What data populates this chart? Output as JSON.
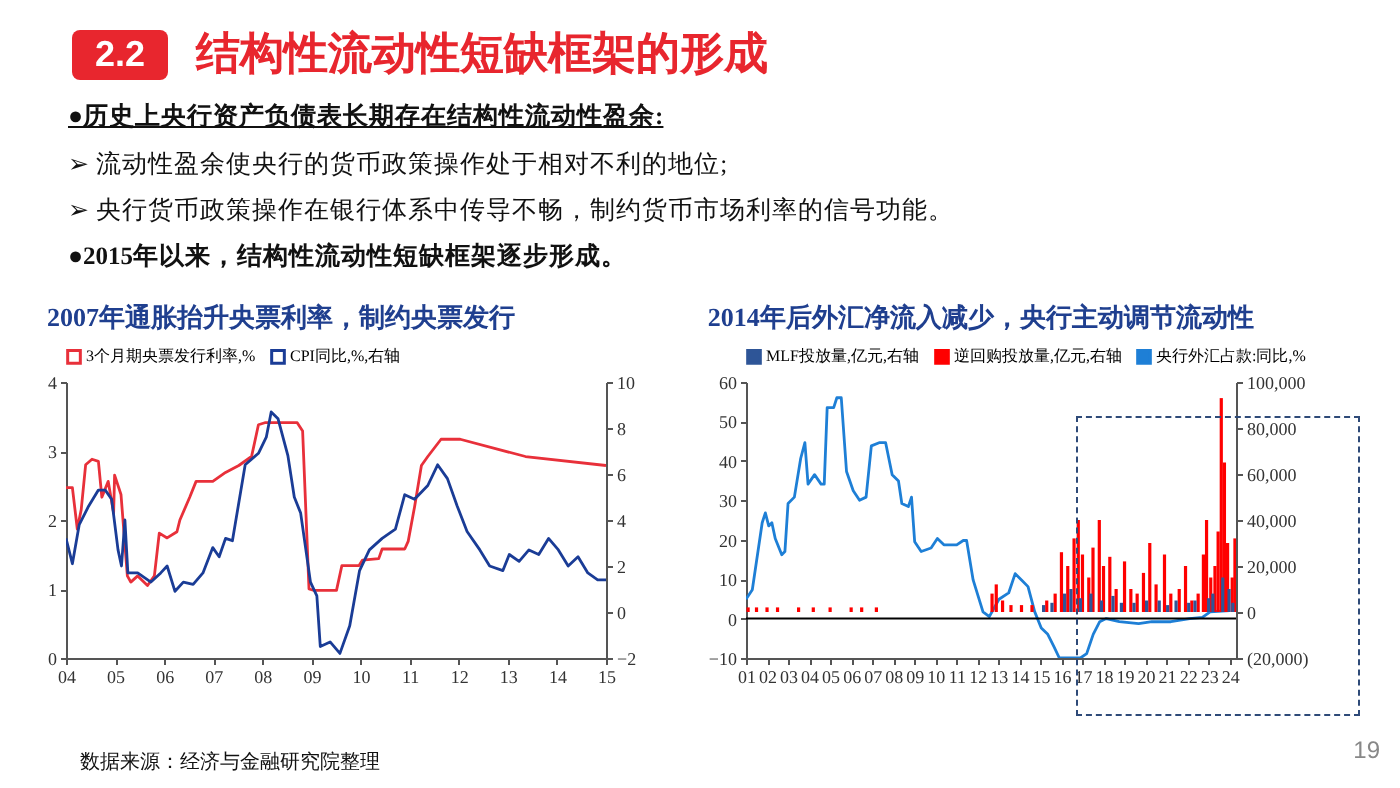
{
  "chart_data": [
    {
      "type": "other",
      "title": "结构性流动性短缺框架的形成",
      "annotations": [
        "2.2",
        "●历史上央行资产负债表长期存在结构性流动性盈余:",
        "➢ 流动性盈余使央行的货币政策操作处于相对不利的地位;",
        "➢ 央行货币政策操作在银行体系中传导不畅，制约货币市场利率的信号功能。",
        "●2015年以来，结构性流动性短缺框架逐步形成。",
        "19"
      ]
    },
    {
      "type": "line",
      "title": "2007年通胀抬升央票利率，制约央票发行",
      "xlim": [
        2004,
        2015
      ],
      "xticks": [
        {
          "value": 2004,
          "label": "04"
        },
        {
          "value": 2005,
          "label": "05"
        },
        {
          "value": 2006,
          "label": "06"
        },
        {
          "value": 2007,
          "label": "07"
        },
        {
          "value": 2008,
          "label": "08"
        },
        {
          "value": 2009,
          "label": "09"
        },
        {
          "value": 2010,
          "label": "10"
        },
        {
          "value": 2011,
          "label": "11"
        },
        {
          "value": 2012,
          "label": "12"
        },
        {
          "value": 2013,
          "label": "13"
        },
        {
          "value": 2014,
          "label": "14"
        },
        {
          "value": 2015,
          "label": "15"
        }
      ],
      "ylim": [
        0,
        4
      ],
      "yticks": [
        0,
        1,
        2,
        3,
        4
      ],
      "y2lim": [
        -2,
        10
      ],
      "y2ticks": [
        -2,
        0,
        2,
        4,
        6,
        8,
        10
      ],
      "legend": "top",
      "grid": false,
      "series": [
        {
          "name": "3个月期央票发行利率,%",
          "color": "#e8303a",
          "x": [
            2004.0,
            2004.13,
            2004.23,
            2004.31,
            2004.4,
            2004.53,
            2004.66,
            2004.73,
            2004.86,
            2004.97,
            2004.99,
            2005.12,
            2005.25,
            2005.32,
            2005.46,
            2005.66,
            2005.8,
            2005.9,
            2006.06,
            2006.26,
            2006.32,
            2006.52,
            2006.65,
            2006.99,
            2007.25,
            2007.52,
            2007.78,
            2007.92,
            2008.05,
            2008.71,
            2008.82,
            2008.95,
            2009.05,
            2009.51,
            2009.62,
            2009.97,
            2010.04,
            2010.37,
            2010.44,
            2010.9,
            2010.97,
            2011.1,
            2011.24,
            2011.37,
            2011.64,
            2012.03,
            2013.36,
            2015.0
          ],
          "values": [
            2.47,
            2.47,
            1.87,
            2.15,
            2.8,
            2.88,
            2.85,
            2.33,
            2.56,
            2.1,
            2.65,
            2.37,
            1.19,
            1.1,
            1.19,
            1.05,
            1.19,
            1.81,
            1.74,
            1.83,
            2.0,
            2.33,
            2.56,
            2.56,
            2.69,
            2.79,
            2.92,
            3.38,
            3.41,
            3.41,
            3.29,
            1.0,
            0.98,
            0.98,
            1.34,
            1.34,
            1.42,
            1.44,
            1.58,
            1.58,
            1.69,
            2.19,
            2.79,
            2.92,
            3.17,
            3.17,
            2.92,
            2.79
          ]
        },
        {
          "name": "CPI同比,%,右轴",
          "color": "#1a3c96",
          "axis": "y2",
          "x": [
            2004.0,
            2004.13,
            2004.27,
            2004.46,
            2004.66,
            2004.8,
            2004.93,
            2005.06,
            2005.13,
            2005.2,
            2005.26,
            2005.46,
            2005.73,
            2005.93,
            2006.06,
            2006.22,
            2006.39,
            2006.59,
            2006.79,
            2006.99,
            2007.12,
            2007.25,
            2007.39,
            2007.65,
            2007.92,
            2008.08,
            2008.18,
            2008.32,
            2008.52,
            2008.65,
            2008.78,
            2008.98,
            2009.11,
            2009.18,
            2009.38,
            2009.58,
            2009.78,
            2009.98,
            2010.18,
            2010.44,
            2010.71,
            2010.9,
            2011.1,
            2011.37,
            2011.57,
            2011.77,
            2011.97,
            2012.17,
            2012.43,
            2012.63,
            2012.9,
            2013.03,
            2013.23,
            2013.43,
            2013.63,
            2013.83,
            2014.03,
            2014.23,
            2014.43,
            2014.63,
            2014.83,
            2015.0
          ],
          "values": [
            3.2,
            2.1,
            3.8,
            4.6,
            5.3,
            5.3,
            4.9,
            2.7,
            2.0,
            4.0,
            1.7,
            1.7,
            1.3,
            1.7,
            2.0,
            0.9,
            1.3,
            1.2,
            1.7,
            2.8,
            2.4,
            3.2,
            3.1,
            6.4,
            6.9,
            7.6,
            8.7,
            8.4,
            6.8,
            5.0,
            4.3,
            1.3,
            0.7,
            -1.5,
            -1.3,
            -1.8,
            -0.6,
            1.8,
            2.7,
            3.2,
            3.6,
            5.1,
            4.9,
            5.5,
            6.4,
            5.8,
            4.6,
            3.5,
            2.7,
            2.0,
            1.8,
            2.5,
            2.2,
            2.7,
            2.5,
            3.2,
            2.7,
            2.0,
            2.4,
            1.7,
            1.4,
            1.4
          ]
        }
      ],
      "annotations": [
        "数据来源：经济与金融研究院整理"
      ]
    },
    {
      "type": "line",
      "title": "2014年后外汇净流入减少，央行主动调节流动性",
      "xlim": [
        2001,
        2024.3
      ],
      "xticks": [
        {
          "value": 2001,
          "label": "01"
        },
        {
          "value": 2002,
          "label": "02"
        },
        {
          "value": 2003,
          "label": "03"
        },
        {
          "value": 2004,
          "label": "04"
        },
        {
          "value": 2005,
          "label": "05"
        },
        {
          "value": 2006,
          "label": "06"
        },
        {
          "value": 2007,
          "label": "07"
        },
        {
          "value": 2008,
          "label": "08"
        },
        {
          "value": 2009,
          "label": "09"
        },
        {
          "value": 2010,
          "label": "10"
        },
        {
          "value": 2011,
          "label": "11"
        },
        {
          "value": 2012,
          "label": "12"
        },
        {
          "value": 2013,
          "label": "13"
        },
        {
          "value": 2014,
          "label": "14"
        },
        {
          "value": 2015,
          "label": "15"
        },
        {
          "value": 2016,
          "label": "16"
        },
        {
          "value": 2017,
          "label": "17"
        },
        {
          "value": 2018,
          "label": "18"
        },
        {
          "value": 2019,
          "label": "19"
        },
        {
          "value": 2020,
          "label": "20"
        },
        {
          "value": 2021,
          "label": "21"
        },
        {
          "value": 2022,
          "label": "22"
        },
        {
          "value": 2023,
          "label": "23"
        },
        {
          "value": 2024,
          "label": "24"
        }
      ],
      "ylim": [
        -10,
        60
      ],
      "yticks": [
        -10,
        0,
        10,
        20,
        30,
        40,
        50,
        60
      ],
      "y2lim": [
        -20000,
        100000
      ],
      "y2ticks": [
        {
          "value": -20000,
          "label": "(20,000)"
        },
        0,
        {
          "value": 20000,
          "label": "20,000"
        },
        {
          "value": 40000,
          "label": "40,000"
        },
        {
          "value": 60000,
          "label": "60,000"
        },
        {
          "value": 80000,
          "label": "80,000"
        },
        {
          "value": 100000,
          "label": "100,000"
        }
      ],
      "legend": "top",
      "grid": false,
      "ref_lines": [
        {
          "axis": "y",
          "value": 0,
          "color": "#000000"
        }
      ],
      "series": [
        {
          "name": "MLF投放量,亿元,右轴",
          "type": "bar",
          "axis": "y2",
          "color": "#2e5597",
          "x": [
            2015.15,
            2015.55,
            2016.15,
            2016.45,
            2016.9,
            2017.4,
            2017.9,
            2018.45,
            2018.85,
            2019.45,
            2020.05,
            2020.65,
            2021.05,
            2021.45,
            2022.05,
            2022.35,
            2023.0,
            2023.2,
            2023.67,
            2023.97,
            2024.15
          ],
          "values": [
            3000,
            4000,
            8000,
            10000,
            6000,
            8000,
            5000,
            7000,
            4000,
            4000,
            5000,
            5000,
            3000,
            5000,
            4000,
            5000,
            6000,
            8000,
            15000,
            10000,
            4000
          ]
        },
        {
          "name": "逆回购投放量,亿元,右轴",
          "type": "bar",
          "axis": "y2",
          "color": "#ff0000",
          "x": [
            2001.1,
            2001.5,
            2002.0,
            2002.5,
            2003.5,
            2004.2,
            2005.0,
            2006.0,
            2006.5,
            2007.2,
            2012.7,
            2012.9,
            2013.2,
            2013.6,
            2014.1,
            2014.6,
            2015.3,
            2015.7,
            2016.0,
            2016.3,
            2016.6,
            2016.8,
            2017.0,
            2017.3,
            2017.5,
            2017.8,
            2018.0,
            2018.3,
            2018.6,
            2019.0,
            2019.3,
            2019.6,
            2019.9,
            2020.2,
            2020.5,
            2020.9,
            2021.2,
            2021.6,
            2021.9,
            2022.2,
            2022.5,
            2022.75,
            2022.9,
            2023.1,
            2023.3,
            2023.45,
            2023.6,
            2023.75,
            2023.9,
            2024.12,
            2024.25
          ],
          "values": [
            2000,
            2000,
            2000,
            2000,
            2000,
            2000,
            2000,
            2000,
            2000,
            2000,
            8000,
            12000,
            5000,
            3000,
            3000,
            3000,
            5000,
            8000,
            26000,
            20000,
            32000,
            40000,
            25000,
            15000,
            28000,
            40000,
            20000,
            24000,
            10000,
            22000,
            10000,
            8000,
            17000,
            30000,
            12000,
            25000,
            8000,
            10000,
            20000,
            5000,
            8000,
            25000,
            40000,
            15000,
            20000,
            35000,
            93000,
            65000,
            30000,
            15000,
            32000
          ]
        },
        {
          "name": "央行外汇占款:同比,%",
          "type": "line",
          "color": "#1e7fd6",
          "x": [
            2001.0,
            2001.3,
            2001.77,
            2001.92,
            2002.08,
            2002.23,
            2002.39,
            2002.7,
            2002.85,
            2003.0,
            2003.3,
            2003.6,
            2003.8,
            2003.95,
            2004.26,
            2004.57,
            2004.72,
            2004.86,
            2005.17,
            2005.32,
            2005.53,
            2005.78,
            2006.1,
            2006.4,
            2006.71,
            2006.96,
            2007.33,
            2007.64,
            2007.95,
            2008.25,
            2008.41,
            2008.72,
            2008.87,
            2009.02,
            2009.33,
            2009.8,
            2010.1,
            2010.41,
            2011.02,
            2011.33,
            2011.49,
            2011.8,
            2012.27,
            2012.57,
            2013.03,
            2013.49,
            2013.8,
            2014.1,
            2014.41,
            2014.73,
            2015.04,
            2015.35,
            2015.66,
            2015.9,
            2016.9,
            2017.2,
            2017.51,
            2017.82,
            2018.13,
            2018.75,
            2019.67,
            2020.3,
            2021.2,
            2022.1,
            2022.7,
            2023.07,
            2024.0
          ],
          "values": [
            4.9,
            7.3,
            24.3,
            26.8,
            23.5,
            24.3,
            20.3,
            16.2,
            17.0,
            29.2,
            30.8,
            40.6,
            44.6,
            34.1,
            36.5,
            34.1,
            34.1,
            53.5,
            53.5,
            56.0,
            56.0,
            37.3,
            32.4,
            30.0,
            30.8,
            43.8,
            44.6,
            44.6,
            36.5,
            34.9,
            29.2,
            28.4,
            30.8,
            19.5,
            17.0,
            17.9,
            20.3,
            18.7,
            18.7,
            19.8,
            19.8,
            9.8,
            1.7,
            0.5,
            4.9,
            6.5,
            11.4,
            9.8,
            8.1,
            1.7,
            -2.4,
            -4.0,
            -7.3,
            -10,
            -10,
            -8.9,
            -4.0,
            -0.8,
            0.0,
            -0.8,
            -1.3,
            -0.8,
            -0.8,
            0.0,
            0.3,
            1.7,
            2.0
          ]
        }
      ]
    }
  ]
}
